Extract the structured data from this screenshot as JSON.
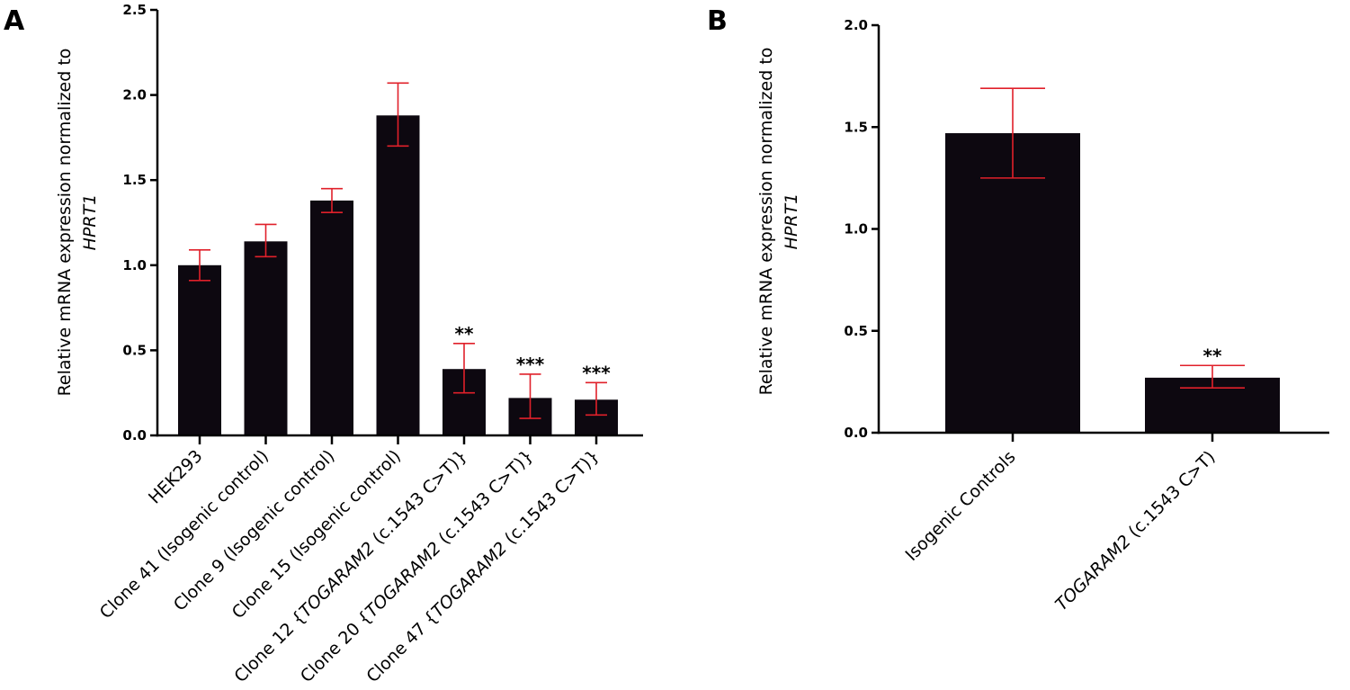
{
  "chart_data": [
    {
      "panel": "A",
      "type": "bar",
      "ylabel": "Relative mRNA expression normalized to",
      "ylabel_gene": "HPRT1",
      "ylim": [
        0,
        2.5
      ],
      "yticks": [
        0.0,
        0.5,
        1.0,
        1.5,
        2.0,
        2.5
      ],
      "ytick_labels": [
        "0.0",
        "0.5",
        "1.0",
        "1.5",
        "2.0",
        "2.5"
      ],
      "categories": [
        {
          "pre": "HEK293",
          "gene": "",
          "post": ""
        },
        {
          "pre": "Clone 41 (Isogenic control)",
          "gene": "",
          "post": ""
        },
        {
          "pre": "Clone 9 (Isogenic control)",
          "gene": "",
          "post": ""
        },
        {
          "pre": "Clone 15 (Isogenic control)",
          "gene": "",
          "post": ""
        },
        {
          "pre": "Clone 12 {",
          "gene": "TOGARAM2",
          "post": " (c.1543 C>T)}"
        },
        {
          "pre": "Clone 20 {",
          "gene": "TOGARAM2",
          "post": " (c.1543 C>T)}"
        },
        {
          "pre": "Clone 47 {",
          "gene": "TOGARAM2",
          "post": " (c.1543 C>T)}"
        }
      ],
      "values": [
        1.0,
        1.14,
        1.38,
        1.88,
        0.39,
        0.22,
        0.21
      ],
      "error_low": [
        0.91,
        1.05,
        1.31,
        1.7,
        0.25,
        0.1,
        0.12
      ],
      "error_high": [
        1.09,
        1.24,
        1.45,
        2.07,
        0.54,
        0.36,
        0.31
      ],
      "significance": [
        "",
        "",
        "",
        "",
        "**",
        "***",
        "***"
      ],
      "bar_color": "#0d0810",
      "error_color": "#e0202a"
    },
    {
      "panel": "B",
      "type": "bar",
      "ylabel": "Relative mRNA expression normalized to",
      "ylabel_gene": "HPRT1",
      "ylim": [
        0,
        2.0
      ],
      "yticks": [
        0.0,
        0.5,
        1.0,
        1.5,
        2.0
      ],
      "ytick_labels": [
        "0.0",
        "0.5",
        "1.0",
        "1.5",
        "2.0"
      ],
      "categories": [
        {
          "pre": "Isogenic Controls",
          "gene": "",
          "post": ""
        },
        {
          "pre": "",
          "gene": "TOGARAM2",
          "post": " (c.1543 C>T)"
        }
      ],
      "values": [
        1.47,
        0.27
      ],
      "error_low": [
        1.25,
        0.22
      ],
      "error_high": [
        1.69,
        0.33
      ],
      "significance": [
        "",
        "**"
      ],
      "bar_color": "#0d0810",
      "error_color": "#e0202a"
    }
  ]
}
